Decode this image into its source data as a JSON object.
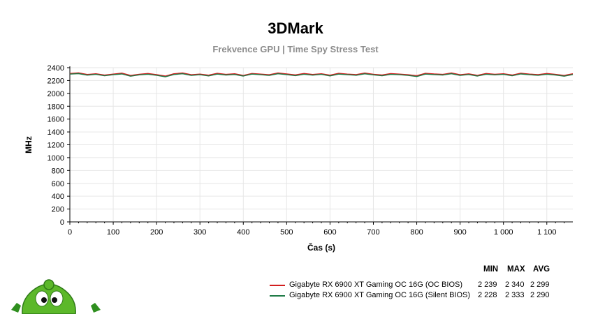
{
  "header": {
    "title": "3DMark",
    "subtitle": "Frekvence GPU | Time Spy Stress Test"
  },
  "legend": {
    "col_min": "MIN",
    "col_max": "MAX",
    "col_avg": "AVG",
    "rows": [
      {
        "name": "Gigabyte RX 6900 XT Gaming OC 16G (OC BIOS)",
        "min": "2 239",
        "max": "2 340",
        "avg": "2 299",
        "color": "#d21e1e"
      },
      {
        "name": "Gigabyte RX 6900 XT Gaming OC 16G (Silent BIOS)",
        "min": "2 228",
        "max": "2 333",
        "avg": "2 290",
        "color": "#1e7a46"
      }
    ]
  },
  "chart_data": {
    "type": "line",
    "xlabel": "Čas (s)",
    "ylabel": "MHz",
    "xlim": [
      0,
      1160
    ],
    "ylim": [
      0,
      2400
    ],
    "x_ticks": [
      0,
      100,
      200,
      300,
      400,
      500,
      600,
      700,
      800,
      900,
      1000,
      1100
    ],
    "x_tick_labels": [
      "0",
      "100",
      "200",
      "300",
      "400",
      "500",
      "600",
      "700",
      "800",
      "900",
      "1 000",
      "1 100"
    ],
    "y_ticks": [
      0,
      200,
      400,
      600,
      800,
      1000,
      1200,
      1400,
      1600,
      1800,
      2000,
      2200,
      2400
    ],
    "grid": true,
    "series": [
      {
        "name": "Gigabyte RX 6900 XT Gaming OC 16G (OC BIOS)",
        "color": "#d21e1e",
        "x": [
          0,
          20,
          40,
          60,
          80,
          100,
          120,
          140,
          160,
          180,
          200,
          220,
          240,
          260,
          280,
          300,
          320,
          340,
          360,
          380,
          400,
          420,
          440,
          460,
          480,
          500,
          520,
          540,
          560,
          580,
          600,
          620,
          640,
          660,
          680,
          700,
          720,
          740,
          760,
          780,
          800,
          820,
          840,
          860,
          880,
          900,
          920,
          940,
          960,
          980,
          1000,
          1020,
          1040,
          1060,
          1080,
          1100,
          1120,
          1140,
          1160
        ],
        "y": [
          2310,
          2320,
          2295,
          2305,
          2285,
          2300,
          2315,
          2280,
          2298,
          2310,
          2292,
          2270,
          2305,
          2318,
          2290,
          2300,
          2284,
          2312,
          2296,
          2305,
          2280,
          2310,
          2300,
          2290,
          2318,
          2302,
          2288,
          2310,
          2295,
          2306,
          2284,
          2312,
          2300,
          2292,
          2316,
          2298,
          2286,
          2308,
          2300,
          2290,
          2276,
          2312,
          2302,
          2296,
          2318,
          2290,
          2304,
          2282,
          2310,
          2298,
          2306,
          2286,
          2314,
          2300,
          2292,
          2310,
          2296,
          2280,
          2305
        ]
      },
      {
        "name": "Gigabyte RX 6900 XT Gaming OC 16G (Silent BIOS)",
        "color": "#1e7a46",
        "x": [
          0,
          20,
          40,
          60,
          80,
          100,
          120,
          140,
          160,
          180,
          200,
          220,
          240,
          260,
          280,
          300,
          320,
          340,
          360,
          380,
          400,
          420,
          440,
          460,
          480,
          500,
          520,
          540,
          560,
          580,
          600,
          620,
          640,
          660,
          680,
          700,
          720,
          740,
          760,
          780,
          800,
          820,
          840,
          860,
          880,
          900,
          920,
          940,
          960,
          980,
          1000,
          1020,
          1040,
          1060,
          1080,
          1100,
          1120,
          1140,
          1160
        ],
        "y": [
          2300,
          2308,
          2284,
          2296,
          2274,
          2290,
          2302,
          2268,
          2288,
          2298,
          2282,
          2258,
          2294,
          2306,
          2280,
          2290,
          2272,
          2300,
          2286,
          2294,
          2270,
          2300,
          2290,
          2280,
          2306,
          2292,
          2276,
          2298,
          2284,
          2296,
          2272,
          2300,
          2290,
          2282,
          2304,
          2288,
          2274,
          2296,
          2290,
          2280,
          2262,
          2300,
          2292,
          2286,
          2306,
          2280,
          2294,
          2270,
          2298,
          2288,
          2296,
          2274,
          2302,
          2290,
          2282,
          2298,
          2286,
          2268,
          2294
        ]
      }
    ]
  }
}
